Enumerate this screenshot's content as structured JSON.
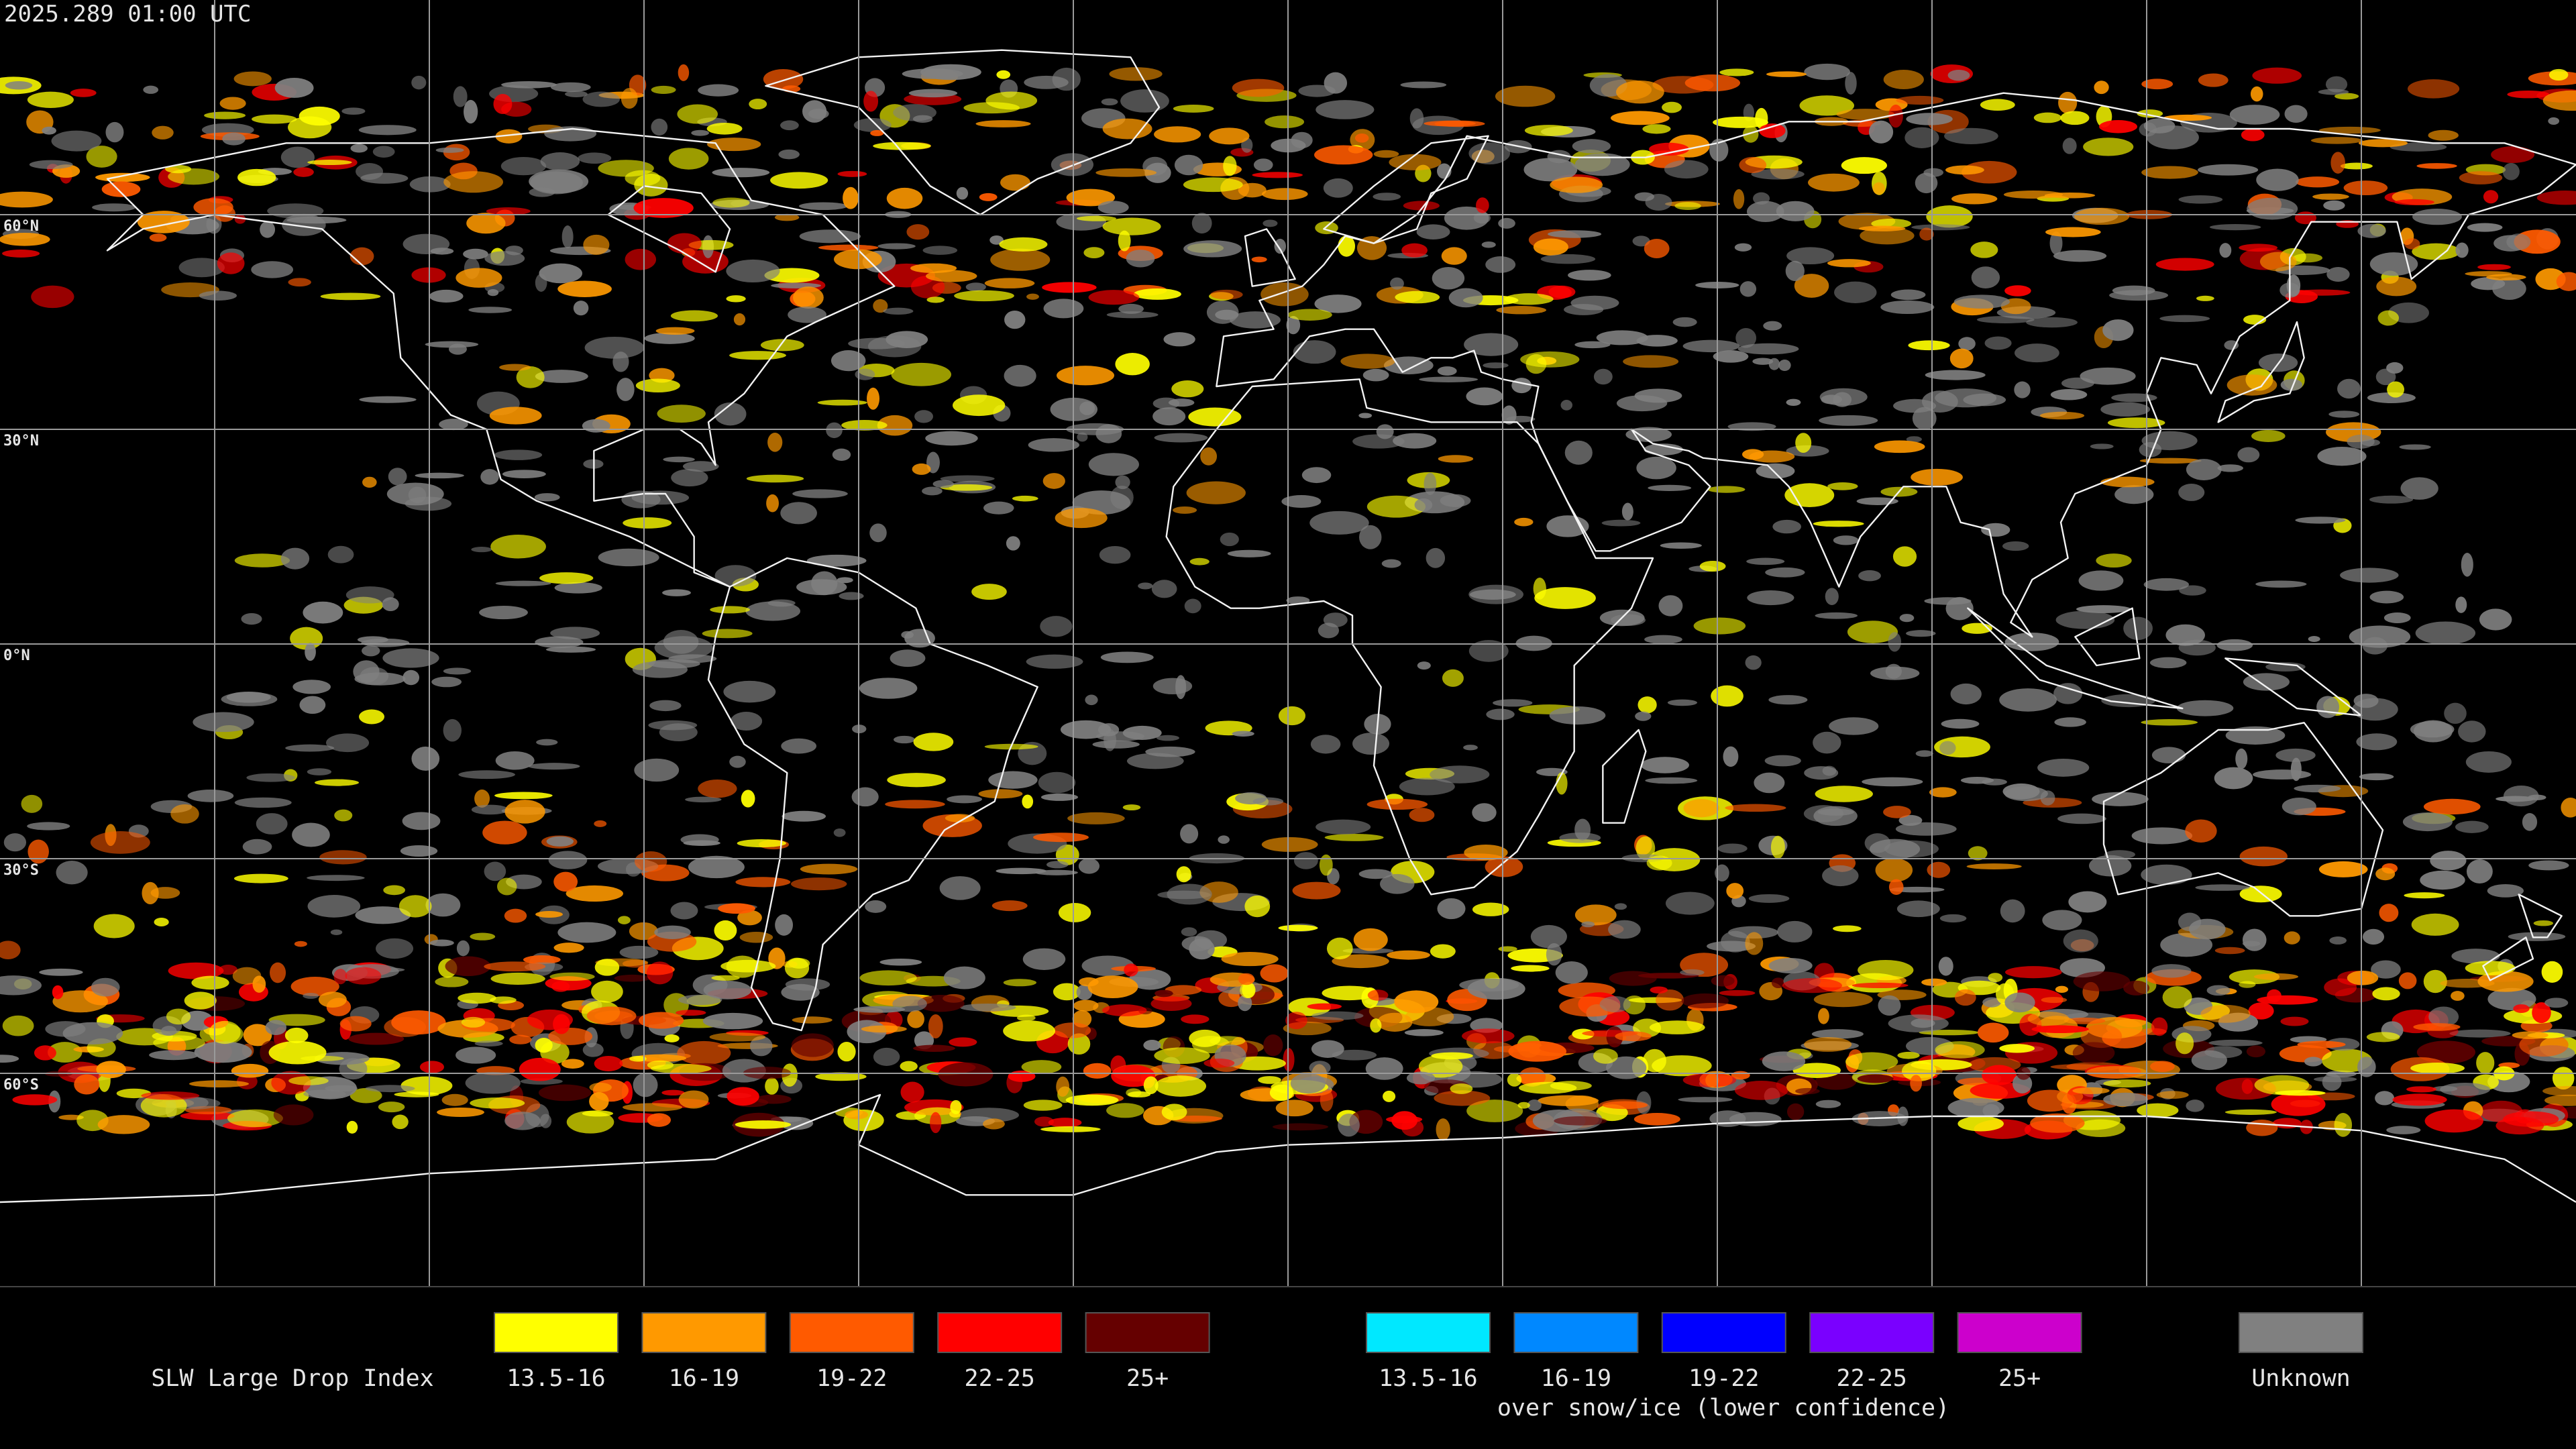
{
  "timestamp": "2025.289 01:00 UTC",
  "latitude_labels": [
    "60°N",
    "30°N",
    "0°N",
    "30°S",
    "60°S"
  ],
  "legend": {
    "title": "SLW Large Drop Index",
    "items": [
      {
        "label": "13.5-16",
        "color": "#ffff00"
      },
      {
        "label": "16-19",
        "color": "#ff9900"
      },
      {
        "label": "19-22",
        "color": "#ff5a00"
      },
      {
        "label": "22-25",
        "color": "#ff0000"
      },
      {
        "label": "25+",
        "color": "#650000"
      }
    ],
    "snow_ice_items": [
      {
        "label": "13.5-16",
        "color": "#00e8ff"
      },
      {
        "label": "16-19",
        "color": "#0088ff"
      },
      {
        "label": "19-22",
        "color": "#0000ff"
      },
      {
        "label": "22-25",
        "color": "#7a00ff"
      },
      {
        "label": "25+",
        "color": "#cc00cc"
      }
    ],
    "snow_ice_caption": "over snow/ice (lower confidence)",
    "unknown": {
      "label": "Unknown",
      "color": "#808080"
    }
  }
}
